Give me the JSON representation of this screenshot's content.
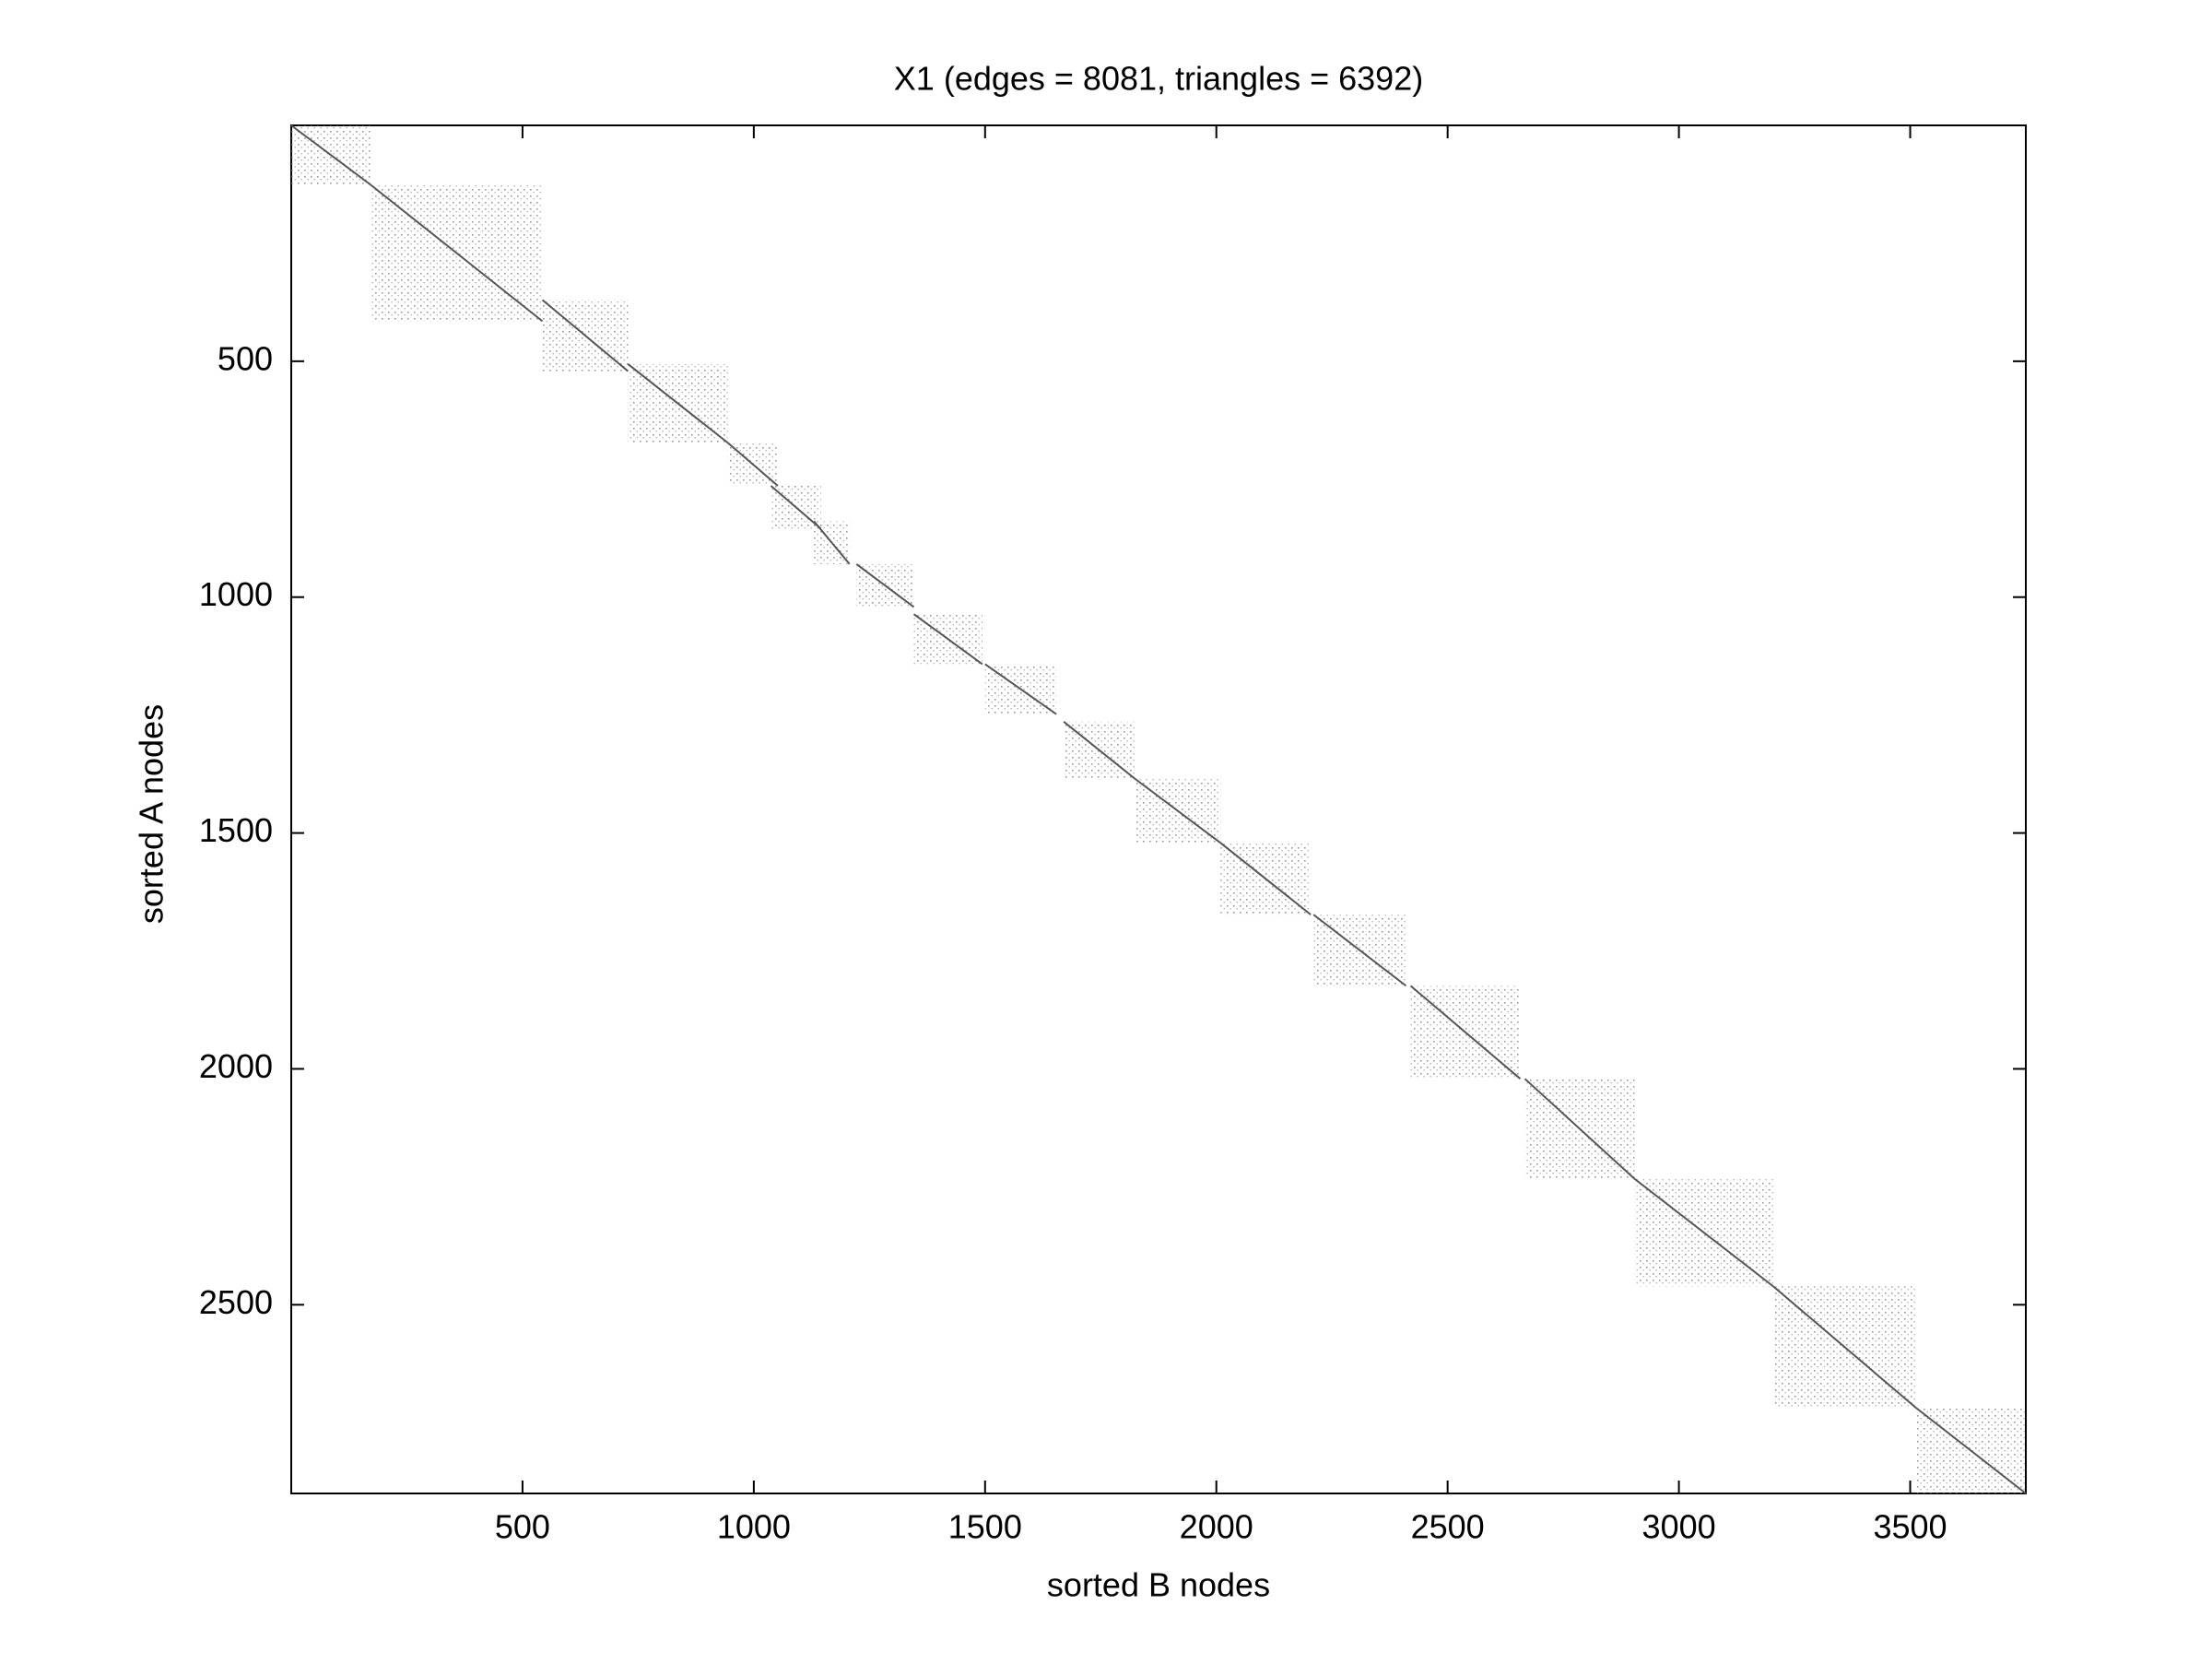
{
  "chart_data": {
    "type": "spy",
    "title": "X1 (edges = 8081, triangles = 6392)",
    "xlabel": "sorted B nodes",
    "ylabel": "sorted A nodes",
    "xlim": [
      0,
      3750
    ],
    "ylim": [
      0,
      2900
    ],
    "y_reversed": true,
    "xticks": [
      500,
      1000,
      1500,
      2000,
      2500,
      3000,
      3500
    ],
    "yticks": [
      500,
      1000,
      1500,
      2000,
      2500
    ],
    "color": "#555555",
    "blocks": [
      {
        "x": [
          0,
          173
        ],
        "y": [
          0,
          127
        ]
      },
      {
        "x": [
          173,
          543
        ],
        "y": [
          127,
          415
        ]
      },
      {
        "x": [
          543,
          728
        ],
        "y": [
          370,
          521
        ]
      },
      {
        "x": [
          728,
          944
        ],
        "y": [
          506,
          673
        ]
      },
      {
        "x": [
          944,
          1052
        ],
        "y": [
          673,
          764
        ]
      },
      {
        "x": [
          1037,
          1145
        ],
        "y": [
          764,
          855
        ]
      },
      {
        "x": [
          1130,
          1207
        ],
        "y": [
          839,
          930
        ]
      },
      {
        "x": [
          1222,
          1346
        ],
        "y": [
          930,
          1021
        ]
      },
      {
        "x": [
          1346,
          1494
        ],
        "y": [
          1036,
          1142
        ]
      },
      {
        "x": [
          1500,
          1654
        ],
        "y": [
          1142,
          1248
        ]
      },
      {
        "x": [
          1670,
          1824
        ],
        "y": [
          1264,
          1385
        ]
      },
      {
        "x": [
          1824,
          2009
        ],
        "y": [
          1385,
          1521
        ]
      },
      {
        "x": [
          2009,
          2204
        ],
        "y": [
          1521,
          1673
        ]
      },
      {
        "x": [
          2210,
          2410
        ],
        "y": [
          1673,
          1824
        ]
      },
      {
        "x": [
          2420,
          2657
        ],
        "y": [
          1824,
          2021
        ]
      },
      {
        "x": [
          2667,
          2904
        ],
        "y": [
          2021,
          2233
        ]
      },
      {
        "x": [
          2904,
          3204
        ],
        "y": [
          2233,
          2461
        ]
      },
      {
        "x": [
          3204,
          3512
        ],
        "y": [
          2461,
          2718
        ]
      },
      {
        "x": [
          3512,
          3750
        ],
        "y": [
          2718,
          2900
        ]
      }
    ]
  }
}
